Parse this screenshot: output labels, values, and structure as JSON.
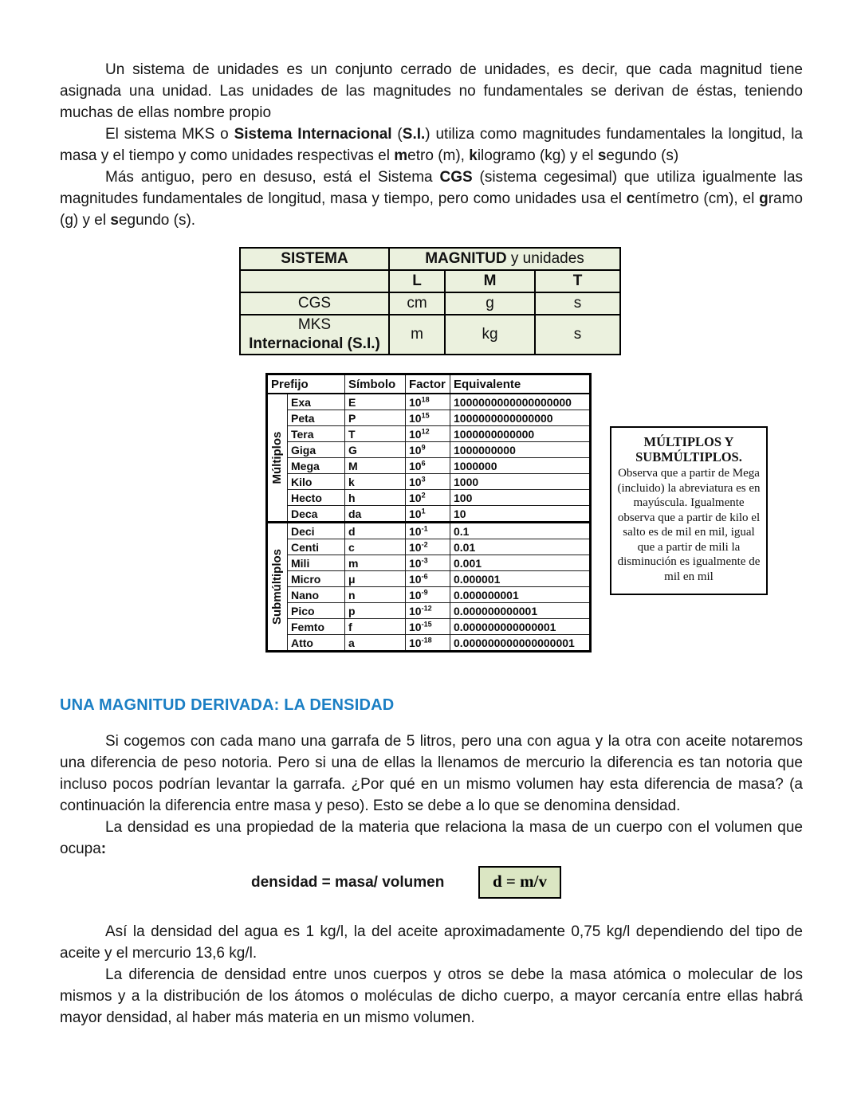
{
  "colors": {
    "accent_blue": "#1b7fc4",
    "table_bg": "#ebf1de",
    "formula_bg": "#dbe6c3"
  },
  "paragraphs": {
    "p1": [
      {
        "t": "Un sistema de unidades es un conjunto cerrado de unidades, es decir, que cada magnitud tiene asignada una unidad. Las unidades de las magnitudes no fundamentales se derivan de éstas, teniendo muchas de ellas nombre propio",
        "b": false
      }
    ],
    "p2": [
      {
        "t": "El sistema MKS o ",
        "b": false
      },
      {
        "t": "Sistema Internacional",
        "b": true
      },
      {
        "t": " (",
        "b": false
      },
      {
        "t": "S.I.",
        "b": true
      },
      {
        "t": ") utiliza como magnitudes fundamentales la longitud, la masa y el tiempo y como unidades respectivas el ",
        "b": false
      },
      {
        "t": "m",
        "b": true
      },
      {
        "t": "etro (m), ",
        "b": false
      },
      {
        "t": "k",
        "b": true
      },
      {
        "t": "ilogramo (kg) y el ",
        "b": false
      },
      {
        "t": "s",
        "b": true
      },
      {
        "t": "egundo (s)",
        "b": false
      }
    ],
    "p3": [
      {
        "t": "Más antiguo, pero en desuso, está el Sistema ",
        "b": false
      },
      {
        "t": "CGS",
        "b": true
      },
      {
        "t": " (sistema cegesimal) que utiliza igualmente las magnitudes fundamentales de longitud, masa y tiempo, pero como unidades usa el ",
        "b": false
      },
      {
        "t": "c",
        "b": true
      },
      {
        "t": "entímetro (cm), el ",
        "b": false
      },
      {
        "t": "g",
        "b": true
      },
      {
        "t": "ramo (g) y el ",
        "b": false
      },
      {
        "t": "s",
        "b": true
      },
      {
        "t": "egundo (s).",
        "b": false
      }
    ],
    "p4": [
      {
        "t": "Si cogemos con cada mano una garrafa de 5 litros, pero una con agua y la otra con aceite notaremos una diferencia de peso notoria. Pero si una de ellas la llenamos de mercurio la diferencia es tan notoria que incluso pocos podrían levantar la garrafa. ¿Por qué en un mismo volumen hay esta diferencia de masa? (a continuación  la diferencia entre masa y peso). Esto se debe a lo que se denomina densidad.",
        "b": false
      }
    ],
    "p5": [
      {
        "t": "La densidad es una propiedad de la materia que relaciona la masa de un cuerpo con el volumen que ocupa",
        "b": false
      },
      {
        "t": ":",
        "b": true
      }
    ],
    "p6": [
      {
        "t": "Así la densidad del agua es 1 kg/l, la del aceite aproximadamente 0,75 kg/l dependiendo del tipo de aceite y el mercurio 13,6 kg/l.",
        "b": false
      }
    ],
    "p7": [
      {
        "t": "La diferencia de densidad entre unos cuerpos y otros se debe la masa atómica o molecular de los mismos y a la distribución de los átomos o moléculas de dicho cuerpo, a mayor cercanía entre ellas habrá mayor densidad, al haber más materia en un mismo volumen.",
        "b": false
      }
    ]
  },
  "sistema_table": {
    "col1_header": "SISTEMA",
    "magnitud_header": [
      {
        "t": "MAGNITUD",
        "b": true
      },
      {
        "t": " y unidades",
        "b": false
      }
    ],
    "subheaders": [
      "L",
      "M",
      "T"
    ],
    "rows": [
      {
        "name": [
          {
            "t": "CGS",
            "b": false
          }
        ],
        "cells": [
          "cm",
          "g",
          "s"
        ]
      },
      {
        "name": [
          {
            "t": "MKS",
            "b": false
          },
          {
            "t": "Internacional (S.I.)",
            "b": true
          }
        ],
        "cells": [
          "m",
          "kg",
          "s"
        ]
      }
    ]
  },
  "prefix_table": {
    "headers": {
      "prefijo": "Prefijo",
      "simbolo": "Símbolo",
      "factor": "Factor",
      "equivalente": "Equivalente"
    },
    "factor_base": "10",
    "groups": [
      {
        "label": "Múltiplos",
        "rows": [
          {
            "p": "Exa",
            "s": "E",
            "e": "18",
            "q": "1000000000000000000"
          },
          {
            "p": "Peta",
            "s": "P",
            "e": "15",
            "q": "1000000000000000"
          },
          {
            "p": "Tera",
            "s": "T",
            "e": "12",
            "q": "1000000000000"
          },
          {
            "p": "Giga",
            "s": "G",
            "e": "9",
            "q": "1000000000"
          },
          {
            "p": "Mega",
            "s": "M",
            "e": "6",
            "q": "1000000"
          },
          {
            "p": "Kilo",
            "s": "k",
            "e": "3",
            "q": "1000"
          },
          {
            "p": "Hecto",
            "s": "h",
            "e": "2",
            "q": "100"
          },
          {
            "p": "Deca",
            "s": "da",
            "e": "1",
            "q": "10"
          }
        ]
      },
      {
        "label": "Submúltiplos",
        "rows": [
          {
            "p": "Deci",
            "s": "d",
            "e": "-1",
            "q": "0.1"
          },
          {
            "p": "Centi",
            "s": "c",
            "e": "-2",
            "q": "0.01"
          },
          {
            "p": "Mili",
            "s": "m",
            "e": "-3",
            "q": "0.001"
          },
          {
            "p": "Micro",
            "s": "μ",
            "e": "-6",
            "q": "0.000001"
          },
          {
            "p": "Nano",
            "s": "n",
            "e": "-9",
            "q": "0.000000001"
          },
          {
            "p": "Pico",
            "s": "p",
            "e": "-12",
            "q": "0.000000000001"
          },
          {
            "p": "Femto",
            "s": "f",
            "e": "-15",
            "q": "0.000000000000001"
          },
          {
            "p": "Atto",
            "s": "a",
            "e": "-18",
            "q": "0.000000000000000001"
          }
        ]
      }
    ]
  },
  "side_box": {
    "title": "MÚLTIPLOS Y SUBMÚLTIPLOS.",
    "body": "Observa que a partir de Mega (incluido) la abreviatura es en mayúscula. Igualmente observa que a partir de kilo el salto es de mil en mil, igual que a partir de mili la disminución es igualmente de mil en mil"
  },
  "density": {
    "heading": "UNA MAGNITUD DERIVADA: LA DENSIDAD",
    "formula_label": "densidad = masa/ volumen",
    "formula_box": "d = m/v"
  }
}
